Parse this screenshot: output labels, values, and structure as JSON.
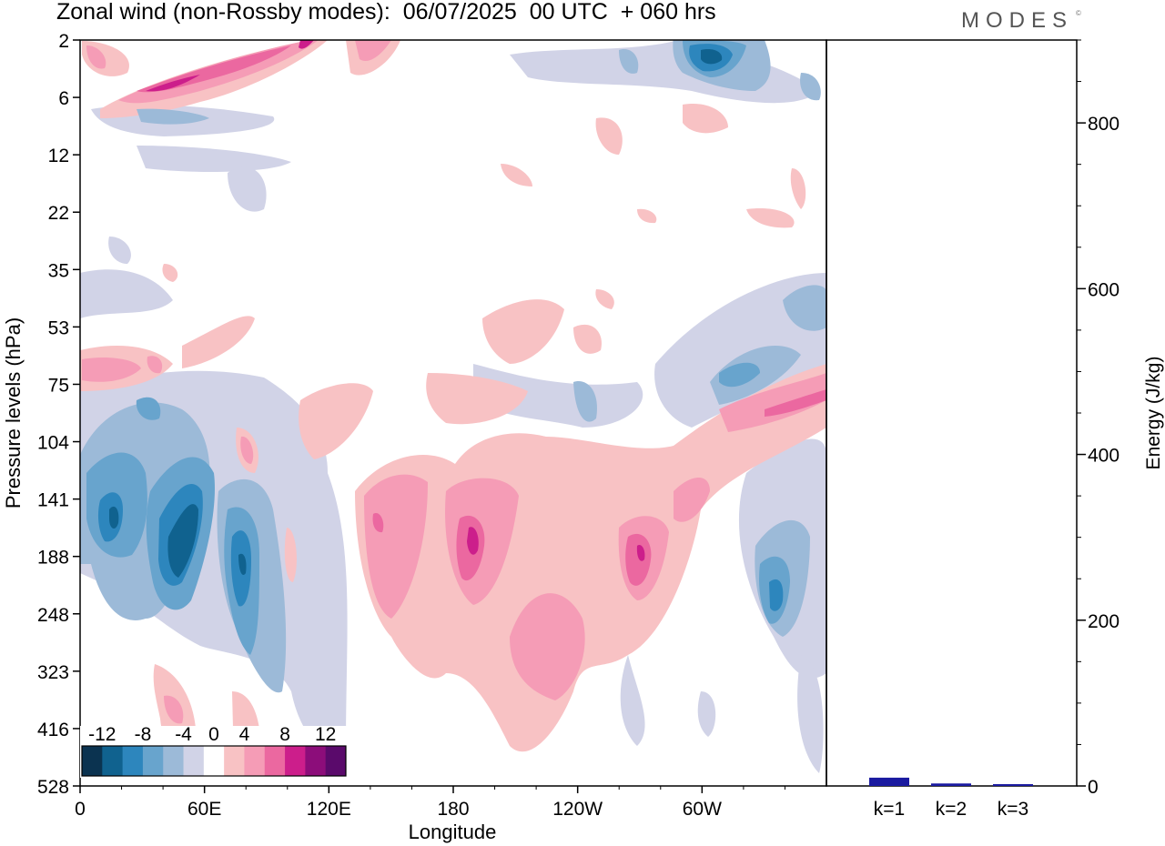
{
  "title": "Zonal wind (non-Rossby modes):  06/07/2025  00 UTC  + 060 hrs",
  "brand": "MODES",
  "brand_mark": "©",
  "chart_data": [
    {
      "type": "heatmap",
      "name": "zonal-wind-section",
      "xlabel": "Longitude",
      "ylabel": "Pressure levels (hPa)",
      "x_ticks": [
        "0",
        "60E",
        "120E",
        "180",
        "120W",
        "60W"
      ],
      "x_tick_degrees": [
        0,
        60,
        120,
        180,
        240,
        300
      ],
      "xlim": [
        0,
        360
      ],
      "y_ticks": [
        "2",
        "6",
        "12",
        "22",
        "35",
        "53",
        "75",
        "104",
        "141",
        "188",
        "248",
        "323",
        "416",
        "528"
      ],
      "colorbar": {
        "labels": [
          "-12",
          "-8",
          "-4",
          "0",
          "4",
          "8",
          "12"
        ],
        "levels": [
          -14,
          -12,
          -10,
          -8,
          -6,
          -4,
          -2,
          2,
          4,
          6,
          8,
          10,
          12,
          14
        ],
        "colors": [
          "#0b3350",
          "#10628f",
          "#2d86bd",
          "#68a4cd",
          "#9cbad8",
          "#d1d3e7",
          "#ffffff",
          "#f8c2c4",
          "#f59cb6",
          "#eb68a0",
          "#cc1e8b",
          "#8c0d7a",
          "#5a0a6b"
        ]
      },
      "features": [
        {
          "lon": 20,
          "level": "188",
          "value": -10
        },
        {
          "lon": 48,
          "level": "188",
          "value": -12
        },
        {
          "lon": 78,
          "level": "188",
          "value": -10
        },
        {
          "lon": 46,
          "level": "104",
          "value": -6
        },
        {
          "lon": 150,
          "level": "188",
          "value": 6
        },
        {
          "lon": 189,
          "level": "188",
          "value": 10
        },
        {
          "lon": 265,
          "level": "188",
          "value": 10
        },
        {
          "lon": 225,
          "level": "248",
          "value": 4
        },
        {
          "lon": 337,
          "level": "248",
          "value": -8
        },
        {
          "lon": 310,
          "level": "75",
          "value": -8
        },
        {
          "lon": 330,
          "level": "104",
          "value": 8
        },
        {
          "lon": 45,
          "level": "6",
          "value": 10
        },
        {
          "lon": 112,
          "level": "2",
          "value": 10
        },
        {
          "lon": 305,
          "level": "2",
          "value": -10
        },
        {
          "lon": 10,
          "level": "75",
          "value": 6
        },
        {
          "lon": 40,
          "level": "416",
          "value": 4
        },
        {
          "lon": 85,
          "level": "416",
          "value": 4
        }
      ]
    },
    {
      "type": "bar",
      "name": "energy-spectrum",
      "categories": [
        "k=1",
        "k=2",
        "k=3"
      ],
      "values": [
        10,
        3,
        1
      ],
      "ylabel": "Energy (J/kg)",
      "ylim": [
        0,
        900
      ],
      "y_ticks": [
        0,
        200,
        400,
        600,
        800
      ],
      "bar_color": "#1a1aa0"
    }
  ]
}
